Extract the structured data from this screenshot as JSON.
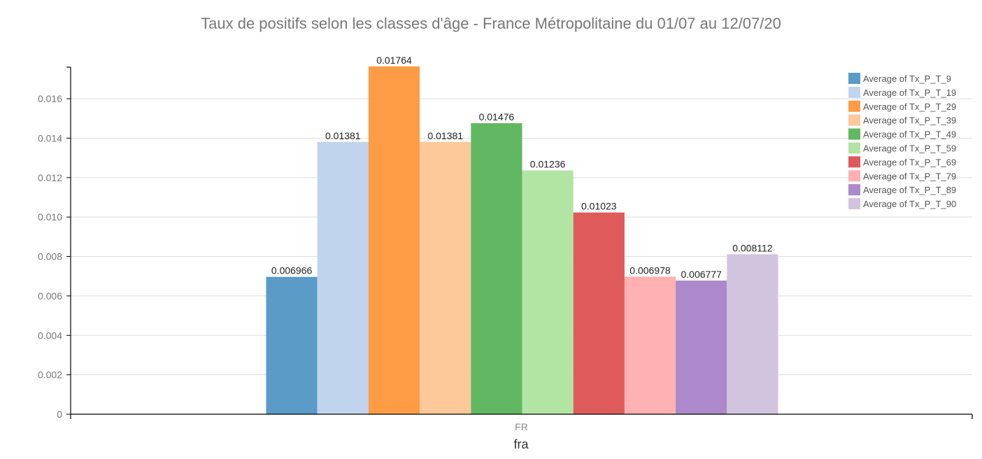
{
  "chart_data": {
    "type": "bar",
    "title": "Taux de positifs selon les classes d'âge - France Métropolitaine du 01/07 au 12/07/20",
    "xlabel": "fra",
    "ylabel": "",
    "categories": [
      "FR"
    ],
    "ylim": [
      0,
      0.0176
    ],
    "yticks": [
      0,
      0.002,
      0.004,
      0.006,
      0.008,
      0.01,
      0.012,
      0.014,
      0.016
    ],
    "ytick_labels": [
      "0",
      "0.002",
      "0.004",
      "0.006",
      "0.008",
      "0.010",
      "0.012",
      "0.014",
      "0.016"
    ],
    "grid": true,
    "legend_position": "top-right",
    "series": [
      {
        "name": "Average of Tx_P_T_9",
        "values": [
          0.006966
        ],
        "label": "0.006966",
        "color": "#5a9bc8"
      },
      {
        "name": "Average of Tx_P_T_19",
        "values": [
          0.01381
        ],
        "label": "0.01381",
        "color": "#c0d4ed"
      },
      {
        "name": "Average of Tx_P_T_29",
        "values": [
          0.01764
        ],
        "label": "0.01764",
        "color": "#fd9c45"
      },
      {
        "name": "Average of Tx_P_T_39",
        "values": [
          0.01381
        ],
        "label": "0.01381",
        "color": "#fec999"
      },
      {
        "name": "Average of Tx_P_T_49",
        "values": [
          0.01476
        ],
        "label": "0.01476",
        "color": "#62b862"
      },
      {
        "name": "Average of Tx_P_T_59",
        "values": [
          0.01236
        ],
        "label": "0.01236",
        "color": "#b2e5a4"
      },
      {
        "name": "Average of Tx_P_T_69",
        "values": [
          0.01023
        ],
        "label": "0.01023",
        "color": "#df5a5a"
      },
      {
        "name": "Average of Tx_P_T_79",
        "values": [
          0.006978
        ],
        "label": "0.006978",
        "color": "#feb1b0"
      },
      {
        "name": "Average of Tx_P_T_89",
        "values": [
          0.006777
        ],
        "label": "0.006777",
        "color": "#ac89ca"
      },
      {
        "name": "Average of Tx_P_T_90",
        "values": [
          0.008112
        ],
        "label": "0.008112",
        "color": "#d2c4df"
      }
    ]
  }
}
